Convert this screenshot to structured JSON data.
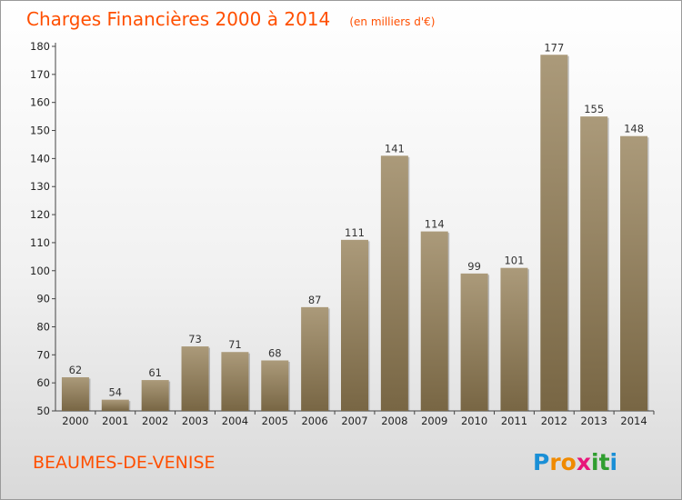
{
  "chart_data": {
    "type": "bar",
    "title": "Charges Financières 2000 à 2014",
    "subtitle": "(en milliers d'€)",
    "categories": [
      "2000",
      "2001",
      "2002",
      "2003",
      "2004",
      "2005",
      "2006",
      "2007",
      "2008",
      "2009",
      "2010",
      "2011",
      "2012",
      "2013",
      "2014"
    ],
    "values": [
      62,
      54,
      61,
      73,
      71,
      68,
      87,
      111,
      141,
      114,
      99,
      101,
      177,
      155,
      148
    ],
    "ylim": [
      50,
      180
    ],
    "yticks": [
      50,
      60,
      70,
      80,
      90,
      100,
      110,
      120,
      130,
      140,
      150,
      160,
      170,
      180
    ],
    "grid": false,
    "bar_color_top": "#ab9a7a",
    "bar_color_bottom": "#786644"
  },
  "town": "BEAUMES-DE-VENISE",
  "logo": {
    "letters": [
      "P",
      "r",
      "o",
      "x",
      "i",
      "t",
      "i"
    ],
    "colors": [
      "#1a8fd6",
      "#f08a00",
      "#f08a00",
      "#e8157a",
      "#2f9e2f",
      "#2f9e2f",
      "#1a8fd6"
    ]
  }
}
